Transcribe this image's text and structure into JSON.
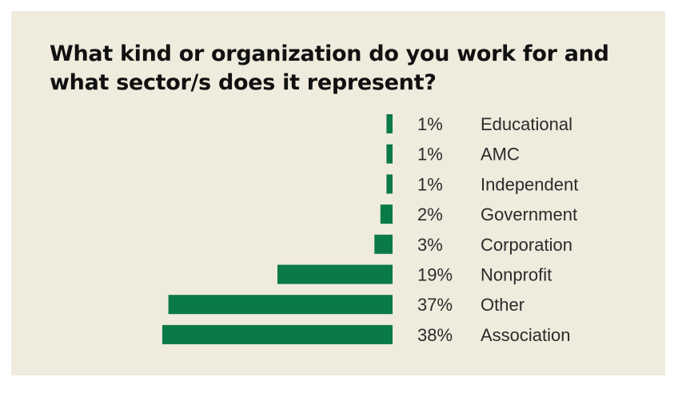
{
  "title": "What kind or organization do you work for and what sector/s does it represent?",
  "colors": {
    "background": "#efebdd",
    "bar": "#0a7a47",
    "text": "#2b2b2b"
  },
  "chart_data": {
    "type": "bar",
    "orientation": "horizontal",
    "title": "What kind or organization do you work for and what sector/s does it represent?",
    "categories": [
      "Educational",
      "AMC",
      "Independent",
      "Government",
      "Corporation",
      "Nonprofit",
      "Other",
      "Association"
    ],
    "values": [
      1,
      1,
      1,
      2,
      3,
      19,
      37,
      38
    ],
    "value_labels": [
      "1%",
      "1%",
      "1%",
      "2%",
      "3%",
      "19%",
      "37%",
      "38%"
    ],
    "unit": "%",
    "grid": false,
    "legend": "none",
    "xlim": [
      0,
      38
    ]
  }
}
